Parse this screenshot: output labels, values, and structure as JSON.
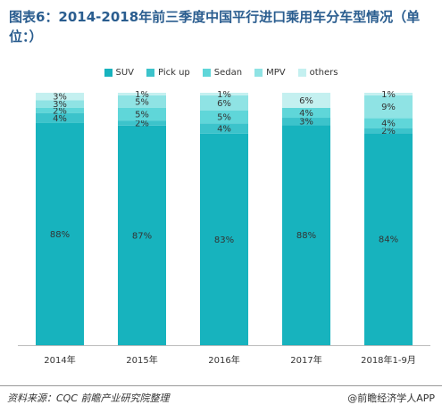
{
  "title": "图表6：2014-2018年前三季度中国平行进口乘用车分车型情况（单位：）",
  "source": "资料来源：CQC 前瞻产业研究院整理",
  "brand": "@前瞻经济学人APP",
  "chart_data": {
    "type": "bar",
    "stacked": true,
    "normalized": true,
    "categories": [
      "2014年",
      "2015年",
      "2016年",
      "2017年",
      "2018年1-9月"
    ],
    "series": [
      {
        "name": "SUV",
        "color": "#17b3be",
        "values": [
          88,
          87,
          83,
          88,
          84
        ],
        "labels": [
          "88%",
          "87%",
          "83%",
          "88%",
          "84%"
        ]
      },
      {
        "name": "Pick up",
        "color": "#3cc3cb",
        "values": [
          4,
          2,
          4,
          3,
          2
        ],
        "labels": [
          "4%",
          "2%",
          "4%",
          "3%",
          "2%"
        ]
      },
      {
        "name": "Sedan",
        "color": "#5fd6d9",
        "values": [
          2,
          5,
          5,
          4,
          4
        ],
        "labels": [
          "2%",
          "5%",
          "5%",
          "4%",
          "4%"
        ]
      },
      {
        "name": "MPV",
        "color": "#8fe3e4",
        "values": [
          3,
          5,
          6,
          0,
          9
        ],
        "labels": [
          "3%",
          "5%",
          "6%",
          "",
          "9%"
        ]
      },
      {
        "name": "others",
        "color": "#c4f0f0",
        "values": [
          3,
          1,
          1,
          6,
          1
        ],
        "labels": [
          "3%",
          "1%",
          "1%",
          "6%",
          "1%"
        ]
      }
    ],
    "legend_position": "top",
    "grid": false
  }
}
